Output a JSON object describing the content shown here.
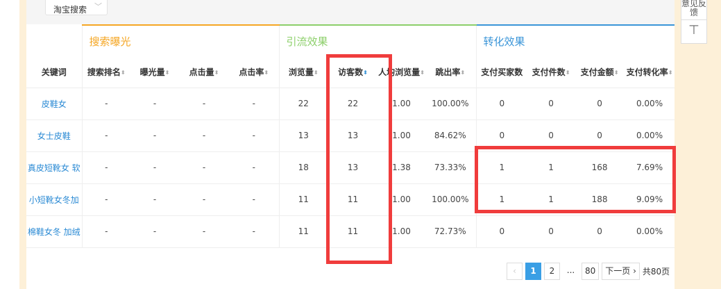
{
  "filter": {
    "source": "淘宝搜索"
  },
  "feedback": {
    "label": "意见反馈",
    "top_icon": "arrow-up-to-top"
  },
  "groups": [
    "搜索曝光",
    "引流效果",
    "转化效果"
  ],
  "colors": {
    "search": "#f5a623",
    "traffic": "#8ccf6a",
    "conversion": "#3a95d8",
    "highlight": "#f03c3c"
  },
  "columns": [
    "关键词",
    "搜索排名",
    "曝光量",
    "点击量",
    "点击率",
    "浏览量",
    "访客数",
    "人均浏览量",
    "跳出率",
    "支付买家数",
    "支付件数",
    "支付金额",
    "支付转化率"
  ],
  "sorted_column": "访客数",
  "rows": [
    [
      "皮鞋女",
      "-",
      "-",
      "-",
      "-",
      "22",
      "22",
      "1.00",
      "100.00%",
      "0",
      "0",
      "0",
      "0.00%"
    ],
    [
      "女士皮鞋",
      "-",
      "-",
      "-",
      "-",
      "13",
      "13",
      "1.00",
      "84.62%",
      "0",
      "0",
      "0",
      "0.00%"
    ],
    [
      "真皮短靴女 软",
      "-",
      "-",
      "-",
      "-",
      "18",
      "13",
      "1.38",
      "73.33%",
      "1",
      "1",
      "168",
      "7.69%"
    ],
    [
      "小短靴女冬加",
      "-",
      "-",
      "-",
      "-",
      "11",
      "11",
      "1.00",
      "100.00%",
      "1",
      "1",
      "188",
      "9.09%"
    ],
    [
      "棉鞋女冬 加绒",
      "-",
      "-",
      "-",
      "-",
      "11",
      "11",
      "1.00",
      "72.73%",
      "0",
      "0",
      "0",
      "0.00%"
    ]
  ],
  "pagination": {
    "prev": "‹",
    "pages": [
      "1",
      "2",
      "...",
      "80"
    ],
    "current": "1",
    "next": "下一页 ›",
    "total": "共80页"
  }
}
